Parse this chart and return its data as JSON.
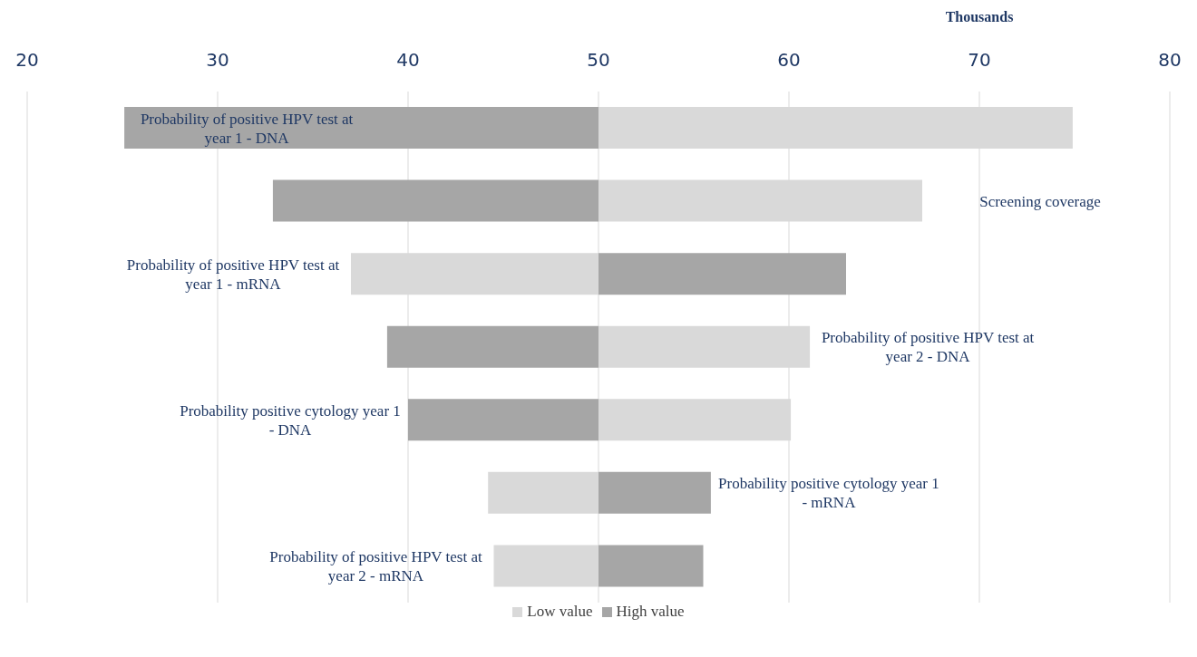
{
  "chart_data": {
    "type": "bar",
    "orientation": "horizontal",
    "xlabel": "Thousands",
    "categories": [
      "Probability of positive HPV test at year 1 - DNA",
      "Screening coverage",
      "Probability of positive HPV test at year 1 - mRNA",
      "Probability of positive HPV test at year 2 - DNA",
      "Probability positive cytology year 1 - DNA",
      "Probability positive cytology year 1 - mRNA",
      "Probability of positive HPV test at year 2 - mRNA"
    ],
    "series": [
      {
        "name": "Low value",
        "color": "#d9d9d9",
        "base": [
          50,
          50,
          50,
          50,
          50,
          50,
          50
        ],
        "values": [
          24.9,
          17.0,
          -13.0,
          11.1,
          10.1,
          -5.8,
          -5.5
        ]
      },
      {
        "name": "High value",
        "color": "#a6a6a6",
        "base": [
          50,
          50,
          50,
          50,
          50,
          50,
          50
        ],
        "values": [
          -24.9,
          -17.1,
          13.0,
          -11.1,
          -10.0,
          5.9,
          5.5
        ]
      }
    ],
    "xlim": [
      20,
      80
    ],
    "xticks": [
      20,
      30,
      40,
      50,
      60,
      70,
      80
    ],
    "grid": "x",
    "legend": "bottom"
  }
}
